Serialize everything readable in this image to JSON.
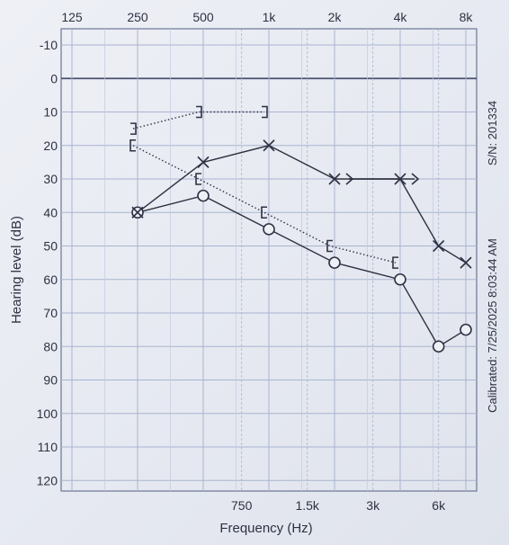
{
  "chart_data": {
    "type": "line",
    "title": "",
    "xlabel": "Frequency (Hz)",
    "ylabel": "Hearing level (dB)",
    "x_scale": "log",
    "y_inverted": true,
    "ylim": [
      -10,
      120
    ],
    "xlim": [
      125,
      8000
    ],
    "grid": true,
    "top_ticks": [
      {
        "label": "125",
        "hz": 125
      },
      {
        "label": "250",
        "hz": 250
      },
      {
        "label": "500",
        "hz": 500
      },
      {
        "label": "1k",
        "hz": 1000
      },
      {
        "label": "2k",
        "hz": 2000
      },
      {
        "label": "4k",
        "hz": 4000
      },
      {
        "label": "8k",
        "hz": 8000
      }
    ],
    "bottom_ticks": [
      {
        "label": "750",
        "hz": 750
      },
      {
        "label": "1.5k",
        "hz": 1500
      },
      {
        "label": "3k",
        "hz": 3000
      },
      {
        "label": "6k",
        "hz": 6000
      }
    ],
    "y_ticks": [
      "-10",
      "0",
      "10",
      "20",
      "30",
      "40",
      "50",
      "60",
      "70",
      "80",
      "90",
      "100",
      "110",
      "120"
    ],
    "series": [
      {
        "marker": "O",
        "line": "solid",
        "x": [
          250,
          500,
          1000,
          2000,
          4000,
          6000,
          8000
        ],
        "y": [
          40,
          35,
          45,
          55,
          60,
          80,
          75
        ]
      },
      {
        "marker": "X",
        "line": "solid",
        "x": [
          250,
          500,
          1000,
          2000,
          4000,
          6000,
          8000
        ],
        "y": [
          40,
          25,
          20,
          30,
          30,
          50,
          55
        ]
      },
      {
        "marker": "[",
        "line": "dotted",
        "x": [
          250,
          500,
          1000,
          2000,
          4000
        ],
        "y": [
          20,
          30,
          40,
          50,
          55
        ]
      },
      {
        "marker": "]",
        "line": "dotted",
        "x": [
          250,
          500,
          1000
        ],
        "y": [
          15,
          10,
          10
        ]
      },
      {
        "marker": ">",
        "line": "solid",
        "x": [
          2000,
          4000
        ],
        "y": [
          30,
          30
        ]
      }
    ],
    "side_labels": {
      "serial": "S/N: 201334",
      "calibrated": "Calibrated: 7/25/2025 8:03:44 AM"
    },
    "colors": {
      "ink": "#2e3142",
      "grid": "#a9b4d0",
      "grid_bold": "#6b7596"
    }
  }
}
